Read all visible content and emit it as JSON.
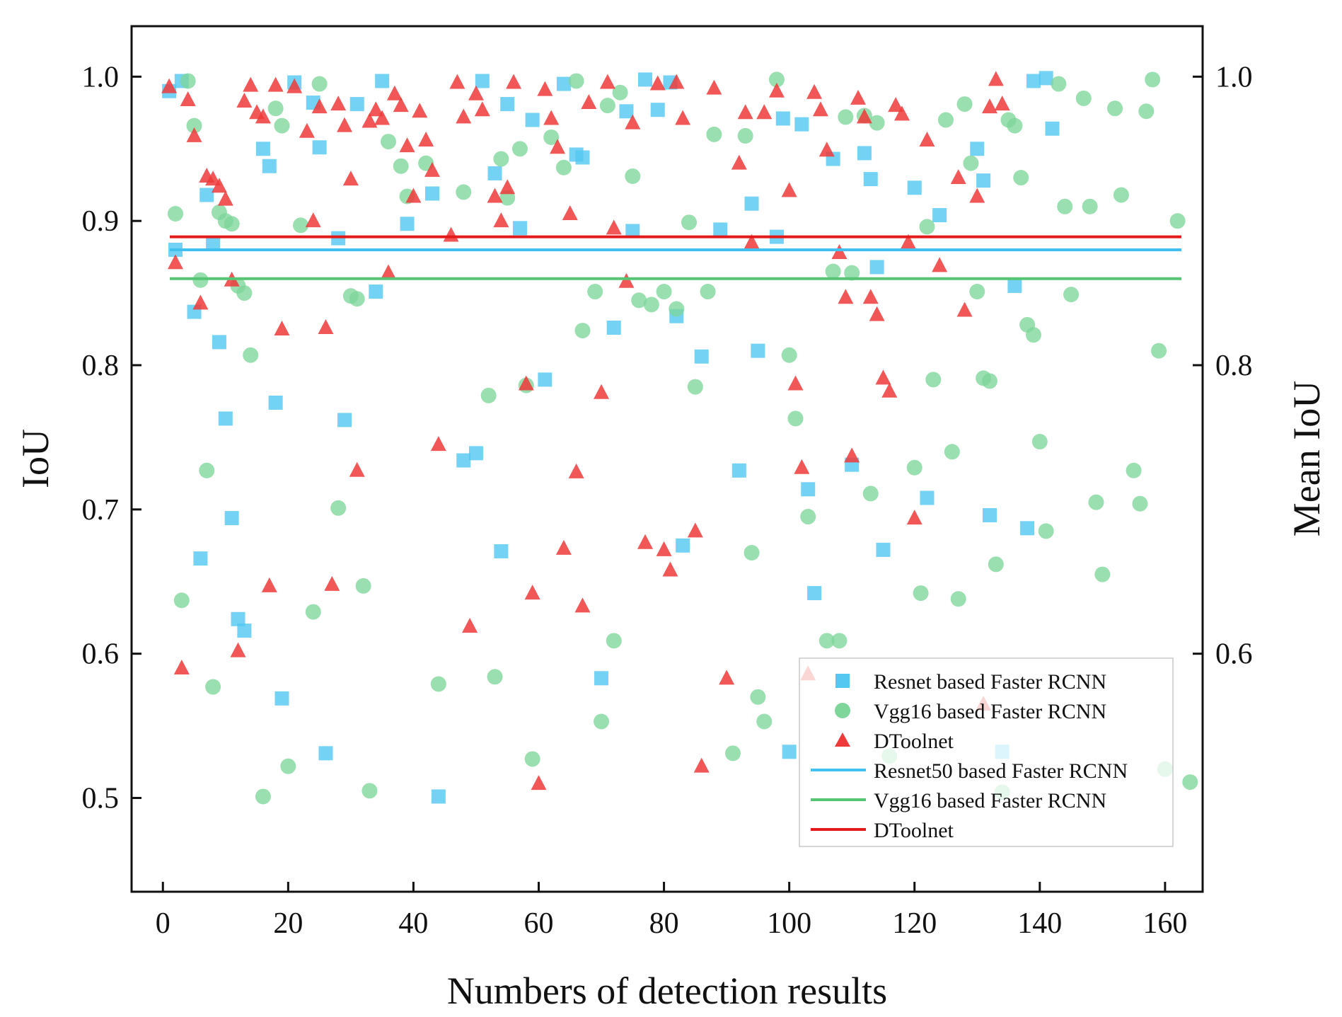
{
  "chart_data": {
    "type": "scatter",
    "title": "",
    "xlabel": "Numbers of detection results",
    "ylabel": "IoU",
    "ylabel_right": "Mean IoU",
    "xlim": [
      -5,
      166
    ],
    "ylim": [
      0.435,
      1.035
    ],
    "ylim_right": [
      0.435,
      1.035
    ],
    "x_ticks": [
      0,
      20,
      40,
      60,
      80,
      100,
      120,
      140,
      160
    ],
    "y_ticks": [
      0.5,
      0.6,
      0.7,
      0.8,
      0.9,
      1.0
    ],
    "y_ticks_right": [
      0.6,
      0.8,
      1.0
    ],
    "x_tick_labels": [
      "0",
      "20",
      "40",
      "60",
      "80",
      "100",
      "120",
      "140",
      "160"
    ],
    "y_tick_labels": [
      "0.5",
      "0.6",
      "0.7",
      "0.8",
      "0.9",
      "1.0"
    ],
    "y_tick_labels_right": [
      "0.6",
      "0.8",
      "1.0"
    ],
    "grid": false,
    "legend_position": "bottom-right",
    "colors": {
      "resnet": "#55c8f2",
      "vgg": "#7ed69a",
      "dtoolnet": "#ee3a3a",
      "resnet_line": "#3fc0ee",
      "vgg_line": "#55c574",
      "dtoolnet_line": "#e31a1a"
    },
    "series": [
      {
        "name": "Resnet based Faster RCNN",
        "marker": "square",
        "color": "#55c8f2",
        "x": [
          1,
          2,
          3,
          5,
          6,
          7,
          8,
          9,
          10,
          11,
          12,
          13,
          16,
          17,
          18,
          19,
          21,
          24,
          25,
          26,
          28,
          29,
          31,
          34,
          35,
          39,
          43,
          44,
          48,
          50,
          51,
          53,
          54,
          55,
          57,
          59,
          61,
          64,
          66,
          67,
          70,
          72,
          74,
          75,
          77,
          79,
          81,
          82,
          83,
          86,
          89,
          92,
          94,
          95,
          98,
          99,
          100,
          102,
          103,
          104,
          107,
          110,
          112,
          113,
          114,
          115,
          120,
          122,
          124,
          130,
          131,
          132,
          134,
          136,
          138,
          139,
          141,
          142
        ],
        "y": [
          0.99,
          0.88,
          0.997,
          0.837,
          0.666,
          0.918,
          0.884,
          0.816,
          0.763,
          0.694,
          0.624,
          0.616,
          0.95,
          0.938,
          0.774,
          0.569,
          0.996,
          0.982,
          0.951,
          0.531,
          0.888,
          0.762,
          0.981,
          0.851,
          0.997,
          0.898,
          0.919,
          0.501,
          0.734,
          0.739,
          0.997,
          0.933,
          0.671,
          0.981,
          0.895,
          0.97,
          0.79,
          0.995,
          0.946,
          0.944,
          0.583,
          0.826,
          0.976,
          0.893,
          0.998,
          0.977,
          0.996,
          0.834,
          0.675,
          0.806,
          0.894,
          0.727,
          0.912,
          0.81,
          0.889,
          0.971,
          0.532,
          0.967,
          0.714,
          0.642,
          0.943,
          0.731,
          0.947,
          0.929,
          0.868,
          0.672,
          0.923,
          0.708,
          0.904,
          0.95,
          0.928,
          0.696,
          0.532,
          0.855,
          0.687,
          0.997,
          0.999,
          0.964
        ]
      },
      {
        "name": "Vgg16 based Faster RCNN",
        "marker": "circle",
        "color": "#7ed69a",
        "x": [
          2,
          3,
          4,
          5,
          6,
          7,
          8,
          9,
          10,
          11,
          12,
          13,
          14,
          16,
          18,
          19,
          20,
          22,
          24,
          25,
          28,
          30,
          31,
          32,
          33,
          36,
          38,
          39,
          42,
          44,
          48,
          52,
          53,
          54,
          55,
          57,
          58,
          59,
          62,
          64,
          66,
          67,
          69,
          70,
          71,
          72,
          73,
          75,
          76,
          78,
          80,
          82,
          84,
          85,
          87,
          88,
          91,
          93,
          94,
          95,
          96,
          98,
          100,
          101,
          103,
          106,
          107,
          108,
          109,
          110,
          112,
          113,
          114,
          116,
          120,
          121,
          122,
          123,
          125,
          126,
          127,
          128,
          129,
          130,
          131,
          132,
          133,
          134,
          135,
          136,
          137,
          138,
          139,
          140,
          141,
          143,
          144,
          145,
          147,
          148,
          149,
          150,
          152,
          153,
          155,
          156,
          157,
          158,
          159,
          160,
          162,
          164
        ],
        "y": [
          0.905,
          0.637,
          0.997,
          0.966,
          0.859,
          0.727,
          0.577,
          0.906,
          0.9,
          0.898,
          0.855,
          0.85,
          0.807,
          0.501,
          0.978,
          0.966,
          0.522,
          0.897,
          0.629,
          0.995,
          0.701,
          0.848,
          0.846,
          0.647,
          0.505,
          0.955,
          0.938,
          0.917,
          0.94,
          0.579,
          0.92,
          0.779,
          0.584,
          0.943,
          0.916,
          0.95,
          0.786,
          0.527,
          0.958,
          0.937,
          0.997,
          0.824,
          0.851,
          0.553,
          0.98,
          0.609,
          0.989,
          0.931,
          0.845,
          0.842,
          0.851,
          0.839,
          0.899,
          0.785,
          0.851,
          0.96,
          0.531,
          0.959,
          0.67,
          0.57,
          0.553,
          0.998,
          0.807,
          0.763,
          0.695,
          0.609,
          0.865,
          0.609,
          0.972,
          0.864,
          0.973,
          0.711,
          0.968,
          0.529,
          0.729,
          0.642,
          0.896,
          0.79,
          0.97,
          0.74,
          0.638,
          0.981,
          0.94,
          0.851,
          0.791,
          0.789,
          0.662,
          0.504,
          0.97,
          0.966,
          0.93,
          0.828,
          0.821,
          0.747,
          0.685,
          0.995,
          0.91,
          0.849,
          0.985,
          0.91,
          0.705,
          0.655,
          0.978,
          0.918,
          0.727,
          0.704,
          0.976,
          0.998,
          0.81,
          0.52,
          0.9,
          0.511
        ]
      },
      {
        "name": "DToolnet",
        "marker": "triangle",
        "color": "#ee3a3a",
        "x": [
          1,
          2,
          3,
          4,
          5,
          6,
          7,
          8,
          9,
          10,
          11,
          12,
          13,
          14,
          15,
          16,
          17,
          18,
          19,
          21,
          23,
          24,
          25,
          26,
          27,
          28,
          29,
          30,
          31,
          33,
          34,
          35,
          36,
          37,
          38,
          39,
          40,
          41,
          42,
          43,
          44,
          46,
          47,
          48,
          49,
          50,
          51,
          53,
          54,
          55,
          56,
          58,
          59,
          60,
          61,
          62,
          63,
          64,
          65,
          66,
          67,
          68,
          70,
          71,
          72,
          74,
          75,
          77,
          79,
          80,
          81,
          82,
          83,
          85,
          86,
          88,
          90,
          92,
          93,
          94,
          96,
          98,
          100,
          101,
          102,
          103,
          104,
          105,
          106,
          108,
          109,
          110,
          111,
          112,
          113,
          114,
          115,
          116,
          117,
          118,
          119,
          120,
          122,
          124,
          127,
          128,
          130,
          131,
          132,
          133,
          134
        ],
        "y": [
          0.993,
          0.871,
          0.59,
          0.984,
          0.959,
          0.843,
          0.931,
          0.929,
          0.924,
          0.915,
          0.859,
          0.602,
          0.983,
          0.994,
          0.975,
          0.972,
          0.647,
          0.994,
          0.825,
          0.993,
          0.962,
          0.9,
          0.979,
          0.826,
          0.648,
          0.981,
          0.966,
          0.929,
          0.727,
          0.969,
          0.977,
          0.971,
          0.864,
          0.988,
          0.98,
          0.952,
          0.917,
          0.976,
          0.956,
          0.935,
          0.745,
          0.89,
          0.996,
          0.972,
          0.619,
          0.988,
          0.977,
          0.917,
          0.9,
          0.923,
          0.996,
          0.787,
          0.642,
          0.51,
          0.991,
          0.971,
          0.951,
          0.673,
          0.905,
          0.726,
          0.633,
          0.982,
          0.781,
          0.996,
          0.895,
          0.858,
          0.968,
          0.677,
          0.995,
          0.672,
          0.658,
          0.996,
          0.971,
          0.685,
          0.522,
          0.992,
          0.583,
          0.94,
          0.975,
          0.885,
          0.975,
          0.99,
          0.921,
          0.787,
          0.729,
          0.586,
          0.989,
          0.977,
          0.949,
          0.878,
          0.847,
          0.737,
          0.985,
          0.972,
          0.847,
          0.835,
          0.791,
          0.782,
          0.98,
          0.974,
          0.885,
          0.694,
          0.956,
          0.869,
          0.93,
          0.838,
          0.917,
          0.565,
          0.979,
          0.998,
          0.981
        ]
      }
    ],
    "mean_lines": [
      {
        "name": "Resnet50 based Faster RCNN",
        "value": 0.88,
        "color": "#3fc0ee"
      },
      {
        "name": "Vgg16 based Faster RCNN",
        "value": 0.86,
        "color": "#55c574"
      },
      {
        "name": "DToolnet",
        "value": 0.889,
        "color": "#e31a1a"
      }
    ]
  }
}
